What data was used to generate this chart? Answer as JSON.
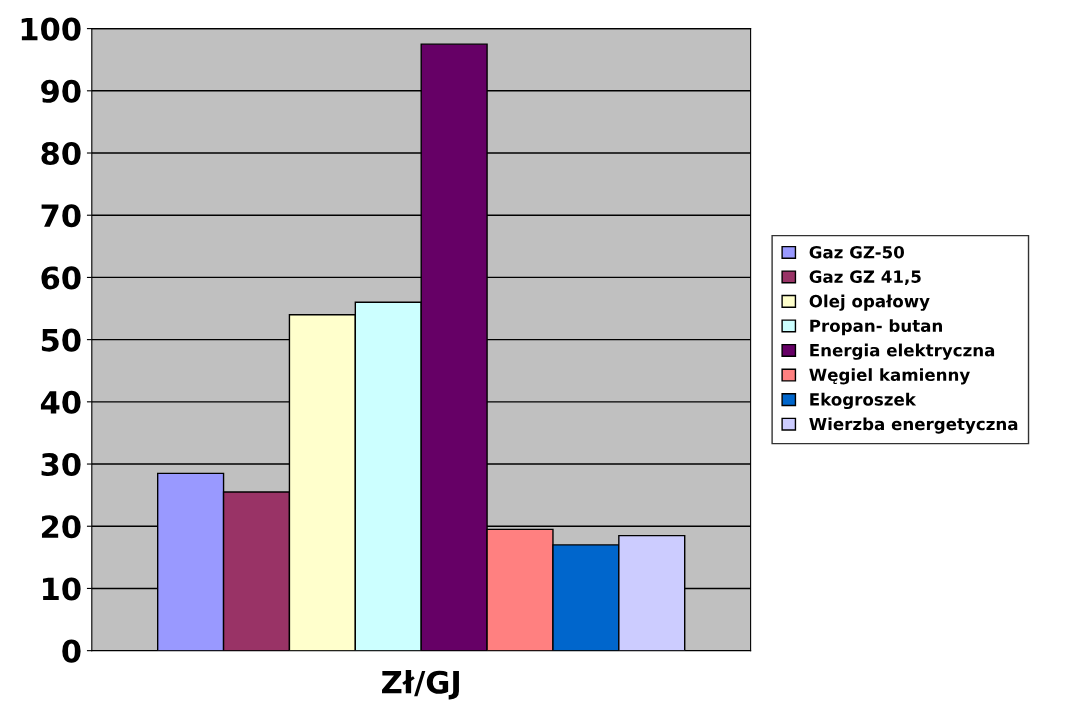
{
  "chart_data": {
    "type": "bar",
    "categories": [
      "Zł/GJ"
    ],
    "series": [
      {
        "name": "Gaz GZ-50",
        "color": "#9999ff",
        "values": [
          28.5
        ]
      },
      {
        "name": "Gaz GZ 41,5",
        "color": "#993366",
        "values": [
          25.5
        ]
      },
      {
        "name": "Olej opałowy",
        "color": "#ffffcc",
        "values": [
          54
        ]
      },
      {
        "name": "Propan- butan",
        "color": "#ccffff",
        "values": [
          56
        ]
      },
      {
        "name": "Energia elektryczna",
        "color": "#660066",
        "values": [
          97.5
        ]
      },
      {
        "name": "Węgiel kamienny",
        "color": "#ff8080",
        "values": [
          19.5
        ]
      },
      {
        "name": "Ekogroszek",
        "color": "#0066cc",
        "values": [
          17
        ]
      },
      {
        "name": "Wierzba energetyczna",
        "color": "#ccccff",
        "values": [
          18.5
        ]
      }
    ],
    "ylim": [
      0,
      100
    ],
    "yticks": [
      0,
      10,
      20,
      30,
      40,
      50,
      60,
      70,
      80,
      90,
      100
    ],
    "grid": "y",
    "legend": "right"
  }
}
